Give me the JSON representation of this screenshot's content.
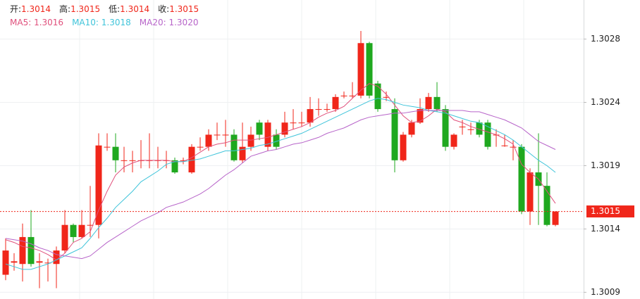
{
  "chart_data": {
    "type": "candlestick",
    "header": [
      {
        "label": "开:",
        "value": "1.3014"
      },
      {
        "label": "高:",
        "value": "1.3015"
      },
      {
        "label": "低:",
        "value": "1.3014"
      },
      {
        "label": "收:",
        "value": "1.3015"
      }
    ],
    "legend_separator": ": ",
    "up_color": "#f0261a",
    "down_color": "#1fa81f",
    "ylim": [
      1.30089,
      1.30311
    ],
    "yticks": [
      {
        "value": 1.30094,
        "label": "1.3009"
      },
      {
        "value": 1.30141,
        "label": "1.3014"
      },
      {
        "value": 1.30188,
        "label": "1.3019"
      },
      {
        "value": 1.30235,
        "label": "1.3024"
      },
      {
        "value": 1.30282,
        "label": "1.3028"
      }
    ],
    "grid": true,
    "last_price": {
      "value": 1.30154,
      "label": "1.3015"
    },
    "open": [
      1.30107,
      1.30116,
      1.30115,
      1.30135,
      1.30116,
      1.30116,
      1.30115,
      1.30125,
      1.30144,
      1.30135,
      1.30144,
      1.30144,
      1.30202,
      1.30202,
      1.30192,
      1.30192,
      1.30192,
      1.30192,
      1.30192,
      1.30192,
      1.30192,
      1.30192,
      1.30183,
      1.30202,
      1.30202,
      1.30211,
      1.30211,
      1.30211,
      1.30192,
      1.30202,
      1.3022,
      1.30202,
      1.30211,
      1.30211,
      1.3022,
      1.3022,
      1.3022,
      1.3023,
      1.3023,
      1.3023,
      1.3024,
      1.3024,
      1.3024,
      1.30279,
      1.30249,
      1.30239,
      1.3023,
      1.30192,
      1.30211,
      1.3022,
      1.3023,
      1.30239,
      1.3023,
      1.30202,
      1.30217,
      1.30215,
      1.3022,
      1.3022,
      1.30211,
      1.30203,
      1.30202,
      1.30202,
      1.30154,
      1.30183,
      1.30173,
      1.30144
    ],
    "high": [
      1.30134,
      1.30123,
      1.30145,
      1.30155,
      1.30123,
      1.30119,
      1.30128,
      1.30155,
      1.30145,
      1.30155,
      1.30173,
      1.30212,
      1.30212,
      1.30212,
      1.30202,
      1.30199,
      1.30207,
      1.30212,
      1.30202,
      1.30199,
      1.30194,
      1.30194,
      1.30204,
      1.30209,
      1.30215,
      1.3022,
      1.30222,
      1.30215,
      1.3022,
      1.30217,
      1.30222,
      1.30222,
      1.30215,
      1.30228,
      1.3023,
      1.30228,
      1.30239,
      1.30238,
      1.30234,
      1.30241,
      1.30243,
      1.3025,
      1.30288,
      1.3028,
      1.30251,
      1.30243,
      1.30238,
      1.30213,
      1.30222,
      1.30238,
      1.30242,
      1.3025,
      1.30233,
      1.30212,
      1.30222,
      1.3022,
      1.30222,
      1.30222,
      1.30215,
      1.30211,
      1.30207,
      1.30204,
      1.30186,
      1.30212,
      1.30183,
      1.30154
    ],
    "low": [
      1.30103,
      1.3011,
      1.30102,
      1.30113,
      1.30097,
      1.30102,
      1.30097,
      1.30123,
      1.30131,
      1.30134,
      1.30135,
      1.30134,
      1.30199,
      1.30183,
      1.30183,
      1.30183,
      1.30186,
      1.30186,
      1.30186,
      1.30186,
      1.30182,
      1.30189,
      1.30182,
      1.30199,
      1.30199,
      1.30207,
      1.30202,
      1.30191,
      1.3019,
      1.30199,
      1.30207,
      1.30199,
      1.302,
      1.30209,
      1.30215,
      1.30217,
      1.30217,
      1.30225,
      1.30228,
      1.30228,
      1.30238,
      1.30238,
      1.30238,
      1.30238,
      1.30228,
      1.30236,
      1.30183,
      1.30191,
      1.30209,
      1.30219,
      1.30228,
      1.30228,
      1.30199,
      1.302,
      1.30211,
      1.30211,
      1.30209,
      1.302,
      1.30202,
      1.30202,
      1.30192,
      1.30152,
      1.30144,
      1.30144,
      1.30143,
      1.30143
    ],
    "close": [
      1.30125,
      1.30117,
      1.30135,
      1.30115,
      1.30117,
      1.30116,
      1.30125,
      1.30144,
      1.30135,
      1.30144,
      1.30144,
      1.30203,
      1.30202,
      1.30192,
      1.30192,
      1.30192,
      1.30192,
      1.30192,
      1.30192,
      1.30192,
      1.30183,
      1.30192,
      1.30202,
      1.30202,
      1.30211,
      1.30211,
      1.30211,
      1.30192,
      1.30202,
      1.30211,
      1.30211,
      1.3022,
      1.30202,
      1.3022,
      1.3022,
      1.3022,
      1.3023,
      1.3023,
      1.3023,
      1.30239,
      1.3024,
      1.3024,
      1.30279,
      1.3024,
      1.3023,
      1.30239,
      1.30192,
      1.30211,
      1.3022,
      1.3023,
      1.30239,
      1.3023,
      1.30202,
      1.30211,
      1.30217,
      1.30215,
      1.30211,
      1.30202,
      1.30211,
      1.30203,
      1.30202,
      1.30154,
      1.30183,
      1.30173,
      1.30144,
      1.30154
    ],
    "series": [
      {
        "name": "MA5",
        "color": "#e0507c",
        "legend_value": "1.3016",
        "values": [
          1.30133,
          1.30131,
          1.30128,
          1.30127,
          1.30125,
          1.30122,
          1.30118,
          1.30123,
          1.30131,
          1.30134,
          1.30139,
          1.30155,
          1.30169,
          1.30181,
          1.30187,
          1.3019,
          1.30192,
          1.30192,
          1.30192,
          1.30192,
          1.30191,
          1.30191,
          1.30194,
          1.30198,
          1.30202,
          1.30204,
          1.30205,
          1.30207,
          1.30207,
          1.30207,
          1.30208,
          1.30209,
          1.30211,
          1.30213,
          1.30215,
          1.30217,
          1.3022,
          1.30224,
          1.30227,
          1.30229,
          1.30232,
          1.30238,
          1.30244,
          1.30249,
          1.30247,
          1.30241,
          1.30233,
          1.30225,
          1.3022,
          1.30221,
          1.30225,
          1.3023,
          1.30228,
          1.30222,
          1.3022,
          1.30217,
          1.30215,
          1.30213,
          1.30211,
          1.30208,
          1.30204,
          1.30189,
          1.30183,
          1.30178,
          1.30169,
          1.3016
        ]
      },
      {
        "name": "MA10",
        "color": "#3fc4da",
        "legend_value": "1.3018",
        "values": [
          1.30115,
          1.30113,
          1.30111,
          1.30111,
          1.30113,
          1.30115,
          1.30118,
          1.30121,
          1.30124,
          1.30127,
          1.30134,
          1.30142,
          1.30149,
          1.30157,
          1.30163,
          1.30169,
          1.30176,
          1.3018,
          1.30184,
          1.30189,
          1.30191,
          1.30191,
          1.30192,
          1.30193,
          1.30195,
          1.30197,
          1.30199,
          1.30199,
          1.302,
          1.30201,
          1.30203,
          1.30204,
          1.30206,
          1.30208,
          1.3021,
          1.30212,
          1.30215,
          1.30218,
          1.30221,
          1.30224,
          1.30227,
          1.3023,
          1.30233,
          1.30236,
          1.30238,
          1.30237,
          1.30235,
          1.30233,
          1.30232,
          1.30231,
          1.30229,
          1.30228,
          1.30227,
          1.30225,
          1.30223,
          1.30221,
          1.3022,
          1.30217,
          1.30214,
          1.30211,
          1.30207,
          1.30202,
          1.30197,
          1.30192,
          1.30188,
          1.30183
        ]
      },
      {
        "name": "MA20",
        "color": "#b764c9",
        "legend_value": "1.3020",
        "values": [
          1.30134,
          1.30133,
          1.30132,
          1.3013,
          1.30127,
          1.30125,
          1.30122,
          1.30121,
          1.3012,
          1.30119,
          1.30121,
          1.30126,
          1.30131,
          1.30135,
          1.30139,
          1.30143,
          1.30147,
          1.3015,
          1.30153,
          1.30157,
          1.30159,
          1.30161,
          1.30164,
          1.30167,
          1.30171,
          1.30176,
          1.30181,
          1.30185,
          1.3019,
          1.30195,
          1.30197,
          1.30199,
          1.302,
          1.30202,
          1.30204,
          1.30205,
          1.30207,
          1.30209,
          1.30212,
          1.30214,
          1.30216,
          1.30219,
          1.30222,
          1.30224,
          1.30225,
          1.30226,
          1.30227,
          1.30227,
          1.30228,
          1.30229,
          1.30229,
          1.30229,
          1.30229,
          1.30229,
          1.30229,
          1.30228,
          1.30228,
          1.30226,
          1.30224,
          1.30222,
          1.30219,
          1.30216,
          1.30211,
          1.30206,
          1.30203,
          1.302
        ]
      }
    ]
  }
}
